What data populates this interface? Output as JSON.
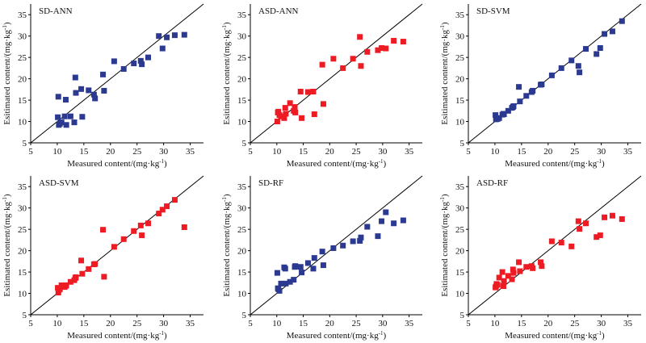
{
  "figure": {
    "x_label": "Measured content/(mg·kg",
    "y_label": "Esitimated content/(mg·kg",
    "unit_sup": "-1",
    "unit_close": ")"
  },
  "colors": {
    "blue": "#2b3990",
    "red": "#ed1c24",
    "line": "#000000"
  },
  "chart_data": [
    {
      "type": "scatter",
      "title": "SD-ANN",
      "color": "blue",
      "xlabel": "Measured content/(mg·kg-1)",
      "ylabel": "Esitimated content/(mg·kg-1)",
      "xlim": [
        5,
        37.5
      ],
      "ylim": [
        5,
        37.5
      ],
      "xticks": [
        5,
        10,
        15,
        20,
        25,
        30,
        35
      ],
      "yticks": [
        5,
        10,
        15,
        20,
        25,
        30,
        35
      ],
      "reference_line": "y = x",
      "x": [
        10.1,
        10.2,
        10.3,
        10.5,
        10.8,
        11.4,
        11.6,
        11.7,
        12.5,
        13.2,
        13.4,
        13.5,
        14.5,
        14.7,
        15.9,
        16.9,
        17.1,
        18.6,
        18.8,
        20.7,
        22.5,
        24.4,
        25.7,
        25.9,
        27.1,
        29.1,
        29.8,
        30.6,
        32.1,
        33.9
      ],
      "y": [
        11.0,
        15.8,
        9.2,
        9.5,
        9.8,
        11.2,
        15.1,
        9.2,
        11.2,
        9.8,
        20.3,
        16.7,
        17.6,
        11.1,
        17.3,
        16.3,
        15.4,
        21.0,
        17.2,
        24.1,
        22.3,
        23.6,
        24.2,
        23.4,
        25.0,
        30.0,
        27.1,
        29.7,
        30.2,
        30.3
      ]
    },
    {
      "type": "scatter",
      "title": "ASD-ANN",
      "color": "red",
      "xlabel": "Measured content/(mg·kg-1)",
      "ylabel": "Esitimated content/(mg·kg-1)",
      "xlim": [
        5,
        37.5
      ],
      "ylim": [
        5,
        37.5
      ],
      "xticks": [
        5,
        10,
        15,
        20,
        25,
        30,
        35
      ],
      "yticks": [
        5,
        10,
        15,
        20,
        25,
        30,
        35
      ],
      "reference_line": "y = x",
      "x": [
        10.1,
        10.2,
        10.3,
        10.5,
        10.8,
        11.4,
        11.6,
        11.7,
        12.5,
        13.2,
        13.4,
        13.5,
        14.5,
        14.7,
        15.9,
        16.9,
        17.1,
        18.6,
        18.8,
        20.7,
        22.5,
        24.4,
        25.7,
        25.9,
        27.1,
        29.1,
        29.8,
        30.6,
        32.1,
        33.9
      ],
      "y": [
        10.0,
        12.1,
        12.3,
        11.5,
        11.2,
        10.8,
        13.2,
        11.8,
        14.3,
        12.5,
        13.4,
        12.1,
        17.0,
        10.8,
        16.9,
        17.0,
        11.7,
        23.3,
        14.1,
        24.7,
        22.5,
        24.7,
        29.8,
        23.0,
        26.3,
        26.7,
        27.2,
        27.1,
        28.9,
        28.7
      ]
    },
    {
      "type": "scatter",
      "title": "SD-SVM",
      "color": "blue",
      "xlabel": "Measured content/(mg·kg-1)",
      "ylabel": "Esitimated content/(mg·kg-1)",
      "xlim": [
        5,
        37.5
      ],
      "ylim": [
        5,
        37.5
      ],
      "xticks": [
        5,
        10,
        15,
        20,
        25,
        30,
        35
      ],
      "yticks": [
        5,
        10,
        15,
        20,
        25,
        30,
        35
      ],
      "reference_line": "y = x",
      "x": [
        10.1,
        10.2,
        10.3,
        10.5,
        10.8,
        11.4,
        11.6,
        11.7,
        12.5,
        13.2,
        13.4,
        13.5,
        14.5,
        14.7,
        15.9,
        16.9,
        17.1,
        18.6,
        18.8,
        20.7,
        22.5,
        24.4,
        25.7,
        25.9,
        27.1,
        29.1,
        29.8,
        30.6,
        32.1,
        33.9
      ],
      "y": [
        11.5,
        10.5,
        10.8,
        10.6,
        10.8,
        11.6,
        11.8,
        11.7,
        12.5,
        13.2,
        13.4,
        13.6,
        18.1,
        14.7,
        16.0,
        16.9,
        17.2,
        18.6,
        18.7,
        20.8,
        22.5,
        24.3,
        23.0,
        21.5,
        27.0,
        25.8,
        27.2,
        30.5,
        31.1,
        33.5
      ]
    },
    {
      "type": "scatter",
      "title": "ASD-SVM",
      "color": "red",
      "xlabel": "Measured content/(mg·kg-1)",
      "ylabel": "Esitimated content/(mg·kg-1)",
      "xlim": [
        5,
        37.5
      ],
      "ylim": [
        5,
        37.5
      ],
      "xticks": [
        5,
        10,
        15,
        20,
        25,
        30,
        35
      ],
      "yticks": [
        5,
        10,
        15,
        20,
        25,
        30,
        35
      ],
      "reference_line": "y = x",
      "x": [
        10.1,
        10.2,
        10.3,
        10.5,
        10.8,
        11.4,
        11.6,
        11.7,
        12.5,
        13.2,
        13.4,
        13.5,
        14.5,
        14.7,
        15.9,
        16.9,
        17.1,
        18.6,
        18.8,
        20.7,
        22.5,
        24.4,
        25.7,
        25.9,
        27.1,
        29.1,
        29.8,
        30.6,
        32.1,
        33.9
      ],
      "y": [
        11.3,
        10.2,
        10.8,
        11.0,
        11.9,
        11.5,
        11.8,
        11.9,
        12.7,
        13.1,
        13.6,
        13.8,
        17.7,
        14.6,
        15.7,
        16.8,
        16.9,
        24.9,
        13.9,
        20.9,
        22.7,
        24.6,
        25.9,
        23.6,
        26.4,
        28.7,
        29.6,
        30.4,
        31.9,
        25.5
      ]
    },
    {
      "type": "scatter",
      "title": "SD-RF",
      "color": "blue",
      "xlabel": "Measured content/(mg·kg-1)",
      "ylabel": "Esitimated content/(mg·kg-1)",
      "xlim": [
        5,
        37.5
      ],
      "ylim": [
        5,
        37.5
      ],
      "xticks": [
        5,
        10,
        15,
        20,
        25,
        30,
        35
      ],
      "yticks": [
        5,
        10,
        15,
        20,
        25,
        30,
        35
      ],
      "reference_line": "y = x",
      "x": [
        10.1,
        10.2,
        10.3,
        10.5,
        10.8,
        11.4,
        11.6,
        11.7,
        12.5,
        13.2,
        13.4,
        13.5,
        14.5,
        14.7,
        15.9,
        16.9,
        17.1,
        18.6,
        18.8,
        20.7,
        22.5,
        24.4,
        25.7,
        25.9,
        27.1,
        29.1,
        29.8,
        30.6,
        32.1,
        33.9
      ],
      "y": [
        14.8,
        11.2,
        11.0,
        10.6,
        12.3,
        16.1,
        15.8,
        12.3,
        12.7,
        13.2,
        16.2,
        16.4,
        16.2,
        14.9,
        17.1,
        15.8,
        18.3,
        19.8,
        16.6,
        20.6,
        21.2,
        22.2,
        22.3,
        23.1,
        25.6,
        23.4,
        26.9,
        29.0,
        26.4,
        27.1
      ]
    },
    {
      "type": "scatter",
      "title": "ASD-RF",
      "color": "red",
      "xlabel": "Measured content/(mg·kg-1)",
      "ylabel": "Esitimated content/(mg·kg-1)",
      "xlim": [
        5,
        37.5
      ],
      "ylim": [
        5,
        37.5
      ],
      "xticks": [
        5,
        10,
        15,
        20,
        25,
        30,
        35
      ],
      "yticks": [
        5,
        10,
        15,
        20,
        25,
        30,
        35
      ],
      "reference_line": "y = x",
      "x": [
        10.1,
        10.2,
        10.3,
        10.5,
        10.8,
        11.4,
        11.6,
        11.7,
        12.5,
        13.2,
        13.4,
        13.5,
        14.5,
        14.7,
        15.9,
        16.9,
        17.1,
        18.6,
        18.8,
        20.7,
        22.5,
        24.4,
        25.7,
        25.9,
        27.1,
        29.1,
        29.8,
        30.6,
        32.1,
        33.9
      ],
      "y": [
        11.4,
        11.6,
        12.2,
        12.0,
        13.7,
        15.0,
        11.7,
        12.9,
        14.1,
        13.3,
        15.6,
        14.8,
        17.3,
        15.2,
        16.2,
        16.4,
        15.9,
        17.3,
        16.4,
        22.2,
        21.9,
        21.0,
        26.9,
        25.1,
        26.4,
        23.2,
        23.6,
        27.8,
        28.2,
        27.4
      ]
    }
  ]
}
